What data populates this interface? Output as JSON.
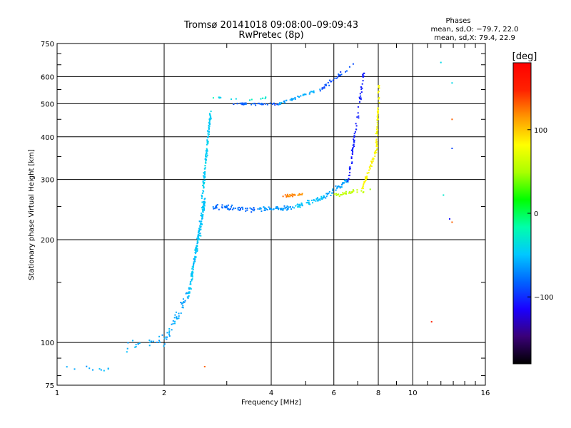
{
  "header": {
    "title_line1": "Tromsø 20141018 09:08:00–09:09:43",
    "title_line2": "RwPretec (8p)",
    "phases_heading": "Phases",
    "phases_o": "mean, sd,O: −79.7, 22.0",
    "phases_x": "mean, sd,X:  79.4, 22.9"
  },
  "chart_data": {
    "type": "scatter",
    "xlabel": "Frequency [MHz]",
    "ylabel": "Stationary phase Virtual Height [km]",
    "xscale": "log",
    "yscale": "log",
    "xlim": [
      1,
      16
    ],
    "ylim": [
      75,
      750
    ],
    "xticks": [
      1,
      2,
      4,
      6,
      8,
      10,
      16
    ],
    "xtick_labels": [
      "1",
      "2",
      "4",
      "6",
      "8",
      "10",
      "16"
    ],
    "yticks": [
      75,
      100,
      200,
      300,
      400,
      500,
      600,
      750
    ],
    "ytick_labels": [
      "75",
      "100",
      "200",
      "300",
      "400",
      "500",
      "600",
      "750"
    ],
    "grid": true,
    "colorbar": {
      "label": "[deg]",
      "range": [
        -180,
        180
      ],
      "ticks": [
        -100,
        0,
        100
      ],
      "tick_labels": [
        "−100",
        "0",
        "100"
      ],
      "colors": [
        "#000000",
        "#3a0078",
        "#1a00ff",
        "#0064ff",
        "#00c8ff",
        "#00ffaa",
        "#00ff00",
        "#aaff00",
        "#ffff00",
        "#ff9900",
        "#ff2200",
        "#ff0000"
      ]
    },
    "series": [
      {
        "traces": [
          {
            "f0": 1.02,
            "f1": 1.5,
            "h0": 85,
            "h1": 83,
            "n": 10,
            "ph": -60,
            "sph": 15,
            "sh": 0.03
          },
          {
            "f0": 1.55,
            "f1": 2.05,
            "h0": 97,
            "h1": 103,
            "n": 22,
            "ph": -60,
            "sph": 15,
            "sh": 0.05
          },
          {
            "f0": 2.0,
            "f1": 2.35,
            "h0": 100,
            "h1": 140,
            "n": 45,
            "ph": -60,
            "sph": 15,
            "sh": 0.06
          },
          {
            "f0": 2.35,
            "f1": 2.6,
            "h0": 140,
            "h1": 260,
            "n": 170,
            "ph": -50,
            "sph": 15,
            "sh": 0.06
          },
          {
            "f0": 2.55,
            "f1": 2.7,
            "h0": 260,
            "h1": 470,
            "n": 110,
            "ph": -45,
            "sph": 12,
            "sh": 0.03
          },
          {
            "f0": 2.75,
            "f1": 3.6,
            "h0": 250,
            "h1": 245,
            "n": 55,
            "ph": -80,
            "sph": 15,
            "sh": 0.025
          },
          {
            "f0": 3.6,
            "f1": 4.6,
            "h0": 245,
            "h1": 248,
            "n": 50,
            "ph": -65,
            "sph": 12,
            "sh": 0.02
          },
          {
            "f0": 4.6,
            "f1": 5.6,
            "h0": 248,
            "h1": 265,
            "n": 45,
            "ph": -50,
            "sph": 12,
            "sh": 0.02
          },
          {
            "f0": 5.6,
            "f1": 6.6,
            "h0": 265,
            "h1": 300,
            "n": 40,
            "ph": -60,
            "sph": 15,
            "sh": 0.025
          },
          {
            "f0": 6.6,
            "f1": 7.3,
            "h0": 300,
            "h1": 630,
            "n": 70,
            "ph": -105,
            "sph": 10,
            "sh": 0.03
          },
          {
            "f0": 5.9,
            "f1": 7.6,
            "h0": 270,
            "h1": 280,
            "n": 30,
            "ph": 55,
            "sph": 20,
            "sh": 0.02
          },
          {
            "f0": 7.2,
            "f1": 8.0,
            "h0": 280,
            "h1": 380,
            "n": 60,
            "ph": 85,
            "sph": 15,
            "sh": 0.025
          },
          {
            "f0": 7.9,
            "f1": 8.05,
            "h0": 380,
            "h1": 580,
            "n": 50,
            "ph": 80,
            "sph": 12,
            "sh": 0.03
          },
          {
            "f0": 3.1,
            "f1": 4.2,
            "h0": 500,
            "h1": 498,
            "n": 40,
            "ph": -85,
            "sph": 12,
            "sh": 0.01
          },
          {
            "f0": 4.2,
            "f1": 5.5,
            "h0": 500,
            "h1": 550,
            "n": 35,
            "ph": -60,
            "sph": 12,
            "sh": 0.015
          },
          {
            "f0": 5.5,
            "f1": 6.8,
            "h0": 550,
            "h1": 650,
            "n": 30,
            "ph": -90,
            "sph": 15,
            "sh": 0.02
          },
          {
            "f0": 4.3,
            "f1": 4.9,
            "h0": 268,
            "h1": 272,
            "n": 25,
            "ph": 120,
            "sph": 15,
            "sh": 0.015
          },
          {
            "f0": 3.3,
            "f1": 3.9,
            "h0": 510,
            "h1": 520,
            "n": 8,
            "ph": -30,
            "sph": 10,
            "sh": 0.01
          },
          {
            "f0": 2.85,
            "f1": 3.2,
            "h0": 520,
            "h1": 515,
            "n": 6,
            "ph": -40,
            "sph": 10,
            "sh": 0.01
          }
        ]
      }
    ],
    "points": [
      {
        "f": 12.0,
        "h": 660,
        "ph": -40
      },
      {
        "f": 12.9,
        "h": 575,
        "ph": -40
      },
      {
        "f": 12.9,
        "h": 450,
        "ph": 130
      },
      {
        "f": 12.9,
        "h": 370,
        "ph": -90
      },
      {
        "f": 12.2,
        "h": 270,
        "ph": -30
      },
      {
        "f": 12.7,
        "h": 230,
        "ph": -110
      },
      {
        "f": 12.9,
        "h": 225,
        "ph": 130
      },
      {
        "f": 11.3,
        "h": 115,
        "ph": 150
      },
      {
        "f": 2.75,
        "h": 520,
        "ph": -20
      },
      {
        "f": 2.6,
        "h": 85,
        "ph": 130
      }
    ]
  }
}
